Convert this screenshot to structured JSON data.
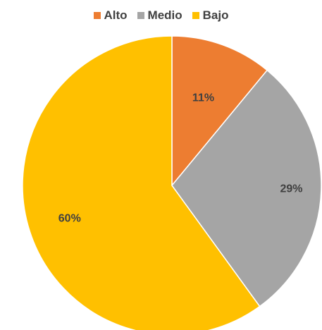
{
  "chart_data": {
    "type": "pie",
    "title": "",
    "legend_position": "top",
    "categories": [
      "Alto",
      "Medio",
      "Bajo"
    ],
    "values": [
      11,
      29,
      60
    ],
    "labels": [
      "11%",
      "29%",
      "60%"
    ],
    "colors": [
      "#ED7D31",
      "#A5A5A5",
      "#FFC000"
    ],
    "start_angle_deg": 0,
    "direction": "clockwise"
  }
}
